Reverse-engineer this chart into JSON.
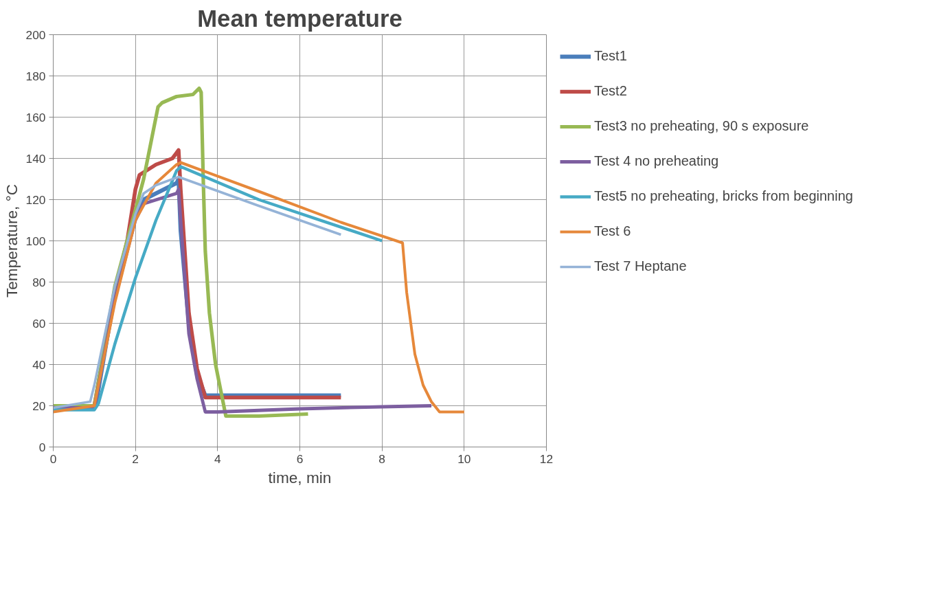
{
  "chart_data": {
    "type": "line",
    "title": "Mean temperature",
    "xlabel": "time, min",
    "ylabel": "Temperature, °C",
    "xlim": [
      0,
      12
    ],
    "xticks": [
      0,
      2,
      4,
      6,
      8,
      10,
      12
    ],
    "ylim": [
      0,
      200
    ],
    "yticks": [
      0,
      20,
      40,
      60,
      80,
      100,
      120,
      140,
      160,
      180,
      200
    ],
    "grid": true,
    "legend": "right",
    "line_style": "solid",
    "marker": "none",
    "series": [
      {
        "name": "Test1",
        "color": "#4a7ebb",
        "x": [
          0,
          1,
          1.05,
          1.5,
          2,
          2.2,
          3,
          3.05,
          3.1,
          3.3,
          3.5,
          3.7,
          7
        ],
        "values": [
          19,
          19,
          22,
          75,
          112,
          120,
          128,
          130,
          105,
          60,
          35,
          25,
          25
        ]
      },
      {
        "name": "Test2",
        "color": "#be4b48",
        "x": [
          0,
          1,
          1.5,
          1.8,
          2,
          2.1,
          2.5,
          2.9,
          3.05,
          3.1,
          3.3,
          3.5,
          3.7,
          7
        ],
        "values": [
          19,
          20,
          75,
          100,
          125,
          132,
          137,
          140,
          144,
          125,
          65,
          38,
          24,
          24
        ]
      },
      {
        "name": "Test3 no preheating, 90 s exposure",
        "color": "#98b954",
        "x": [
          0,
          1,
          1.5,
          2,
          2.2,
          2.4,
          2.55,
          2.65,
          3,
          3.4,
          3.55,
          3.6,
          3.65,
          3.7,
          3.8,
          3.95,
          4.1,
          4.2,
          5,
          6.2
        ],
        "values": [
          20,
          20,
          78,
          115,
          130,
          150,
          165,
          167,
          170,
          171,
          174,
          172,
          130,
          95,
          65,
          40,
          25,
          15,
          15,
          16
        ]
      },
      {
        "name": "Test 4 no preheating",
        "color": "#7d5fa0",
        "x": [
          0,
          1,
          1.5,
          2,
          2.2,
          3,
          3.05,
          3.1,
          3.3,
          3.5,
          3.7,
          4,
          6,
          8,
          9.2
        ],
        "values": [
          19,
          19,
          72,
          110,
          118,
          123,
          125,
          110,
          55,
          33,
          17,
          17,
          18.5,
          19.5,
          20
        ]
      },
      {
        "name": "Test5 no preheating, bricks from beginning",
        "color": "#46aac5",
        "x": [
          0,
          1,
          1.1,
          1.5,
          2,
          2.5,
          3,
          3.1,
          5,
          8
        ],
        "values": [
          18,
          18,
          21,
          50,
          82,
          110,
          134,
          136,
          120,
          100
        ]
      },
      {
        "name": "Test 6",
        "color": "#e6883a",
        "x": [
          0,
          1,
          1.5,
          2,
          2.5,
          3,
          3.1,
          5,
          7,
          8.5,
          8.6,
          8.8,
          9,
          9.2,
          9.4,
          9.6,
          10
        ],
        "values": [
          17,
          20,
          70,
          110,
          128,
          137,
          138,
          124,
          109,
          99,
          75,
          45,
          30,
          22,
          17,
          17,
          17
        ]
      },
      {
        "name": "Test 7 Heptane",
        "color": "#95b3d7",
        "x": [
          0,
          0.9,
          1,
          1.5,
          2,
          2.2,
          2.5,
          3.05,
          5,
          7
        ],
        "values": [
          19,
          22,
          30,
          78,
          113,
          123,
          127,
          131,
          117,
          103
        ]
      }
    ]
  }
}
